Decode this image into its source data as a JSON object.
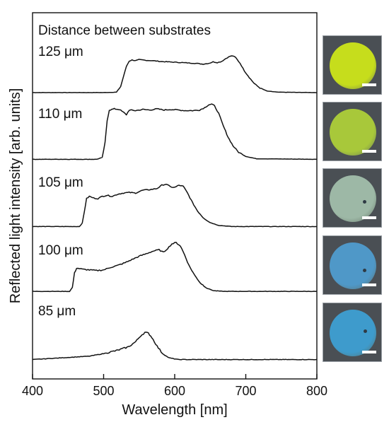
{
  "chart_data": {
    "type": "line",
    "title": "",
    "xlabel": "Wavelength [nm]",
    "ylabel": "Reflected light intensity [arb. units]",
    "annotation": "Distance between substrates",
    "xlim": [
      400,
      800
    ],
    "xticks": [
      400,
      500,
      600,
      700,
      800
    ],
    "y_tick_labels": false,
    "grid": false,
    "series": [
      {
        "label": "125 μm",
        "points": [
          [
            400,
            0.02
          ],
          [
            500,
            0.02
          ],
          [
            518,
            0.03
          ],
          [
            524,
            0.18
          ],
          [
            528,
            0.45
          ],
          [
            532,
            0.72
          ],
          [
            536,
            0.86
          ],
          [
            540,
            0.89
          ],
          [
            545,
            0.87
          ],
          [
            550,
            0.9
          ],
          [
            560,
            0.88
          ],
          [
            570,
            0.87
          ],
          [
            580,
            0.85
          ],
          [
            590,
            0.84
          ],
          [
            600,
            0.83
          ],
          [
            610,
            0.82
          ],
          [
            620,
            0.81
          ],
          [
            630,
            0.8
          ],
          [
            640,
            0.78
          ],
          [
            648,
            0.8
          ],
          [
            654,
            0.84
          ],
          [
            660,
            0.82
          ],
          [
            666,
            0.85
          ],
          [
            672,
            0.93
          ],
          [
            678,
            0.99
          ],
          [
            682,
            1.0
          ],
          [
            686,
            0.95
          ],
          [
            692,
            0.8
          ],
          [
            698,
            0.6
          ],
          [
            705,
            0.42
          ],
          [
            712,
            0.26
          ],
          [
            720,
            0.14
          ],
          [
            730,
            0.06
          ],
          [
            745,
            0.03
          ],
          [
            800,
            0.02
          ]
        ]
      },
      {
        "label": "110 μm",
        "points": [
          [
            400,
            0.02
          ],
          [
            490,
            0.02
          ],
          [
            498,
            0.05
          ],
          [
            502,
            0.3
          ],
          [
            505,
            0.68
          ],
          [
            508,
            0.86
          ],
          [
            515,
            0.88
          ],
          [
            522,
            0.87
          ],
          [
            528,
            0.82
          ],
          [
            532,
            0.78
          ],
          [
            536,
            0.86
          ],
          [
            545,
            0.85
          ],
          [
            555,
            0.87
          ],
          [
            565,
            0.86
          ],
          [
            575,
            0.88
          ],
          [
            585,
            0.86
          ],
          [
            595,
            0.87
          ],
          [
            605,
            0.86
          ],
          [
            615,
            0.85
          ],
          [
            625,
            0.85
          ],
          [
            635,
            0.86
          ],
          [
            642,
            0.9
          ],
          [
            648,
            0.95
          ],
          [
            652,
            0.96
          ],
          [
            656,
            0.93
          ],
          [
            662,
            0.8
          ],
          [
            668,
            0.6
          ],
          [
            675,
            0.4
          ],
          [
            682,
            0.25
          ],
          [
            690,
            0.14
          ],
          [
            700,
            0.07
          ],
          [
            715,
            0.03
          ],
          [
            800,
            0.02
          ]
        ]
      },
      {
        "label": "105 μm",
        "points": [
          [
            400,
            0.02
          ],
          [
            466,
            0.02
          ],
          [
            470,
            0.08
          ],
          [
            473,
            0.3
          ],
          [
            476,
            0.52
          ],
          [
            480,
            0.56
          ],
          [
            486,
            0.53
          ],
          [
            492,
            0.52
          ],
          [
            498,
            0.56
          ],
          [
            505,
            0.58
          ],
          [
            512,
            0.56
          ],
          [
            520,
            0.6
          ],
          [
            528,
            0.62
          ],
          [
            536,
            0.63
          ],
          [
            545,
            0.62
          ],
          [
            555,
            0.67
          ],
          [
            565,
            0.68
          ],
          [
            575,
            0.7
          ],
          [
            582,
            0.76
          ],
          [
            588,
            0.78
          ],
          [
            594,
            0.73
          ],
          [
            600,
            0.72
          ],
          [
            606,
            0.76
          ],
          [
            612,
            0.74
          ],
          [
            618,
            0.62
          ],
          [
            625,
            0.45
          ],
          [
            632,
            0.3
          ],
          [
            640,
            0.18
          ],
          [
            650,
            0.09
          ],
          [
            662,
            0.04
          ],
          [
            680,
            0.02
          ],
          [
            800,
            0.02
          ]
        ]
      },
      {
        "label": "100 μm",
        "points": [
          [
            400,
            0.02
          ],
          [
            452,
            0.02
          ],
          [
            456,
            0.08
          ],
          [
            459,
            0.3
          ],
          [
            462,
            0.38
          ],
          [
            470,
            0.36
          ],
          [
            480,
            0.35
          ],
          [
            490,
            0.34
          ],
          [
            500,
            0.35
          ],
          [
            510,
            0.39
          ],
          [
            520,
            0.42
          ],
          [
            530,
            0.46
          ],
          [
            540,
            0.51
          ],
          [
            550,
            0.56
          ],
          [
            560,
            0.6
          ],
          [
            570,
            0.64
          ],
          [
            578,
            0.66
          ],
          [
            584,
            0.62
          ],
          [
            590,
            0.68
          ],
          [
            596,
            0.75
          ],
          [
            602,
            0.77
          ],
          [
            608,
            0.72
          ],
          [
            614,
            0.58
          ],
          [
            620,
            0.42
          ],
          [
            628,
            0.27
          ],
          [
            636,
            0.15
          ],
          [
            645,
            0.07
          ],
          [
            655,
            0.03
          ],
          [
            670,
            0.02
          ],
          [
            800,
            0.02
          ]
        ]
      },
      {
        "label": "85 μm",
        "points": [
          [
            400,
            0.02
          ],
          [
            420,
            0.03
          ],
          [
            440,
            0.04
          ],
          [
            460,
            0.05
          ],
          [
            480,
            0.06
          ],
          [
            500,
            0.09
          ],
          [
            520,
            0.13
          ],
          [
            535,
            0.17
          ],
          [
            545,
            0.23
          ],
          [
            552,
            0.3
          ],
          [
            558,
            0.34
          ],
          [
            563,
            0.33
          ],
          [
            568,
            0.28
          ],
          [
            575,
            0.18
          ],
          [
            583,
            0.09
          ],
          [
            592,
            0.04
          ],
          [
            605,
            0.02
          ],
          [
            800,
            0.02
          ]
        ]
      }
    ]
  },
  "photos": [
    {
      "label": "125 μm",
      "color": "#c6dd1c"
    },
    {
      "label": "110 μm",
      "color": "#a8c83a"
    },
    {
      "label": "105 μm",
      "color": "#9db8a6"
    },
    {
      "label": "100 μm",
      "color": "#4f98c8"
    },
    {
      "label": "85 μm",
      "color": "#3e9bcc"
    }
  ]
}
